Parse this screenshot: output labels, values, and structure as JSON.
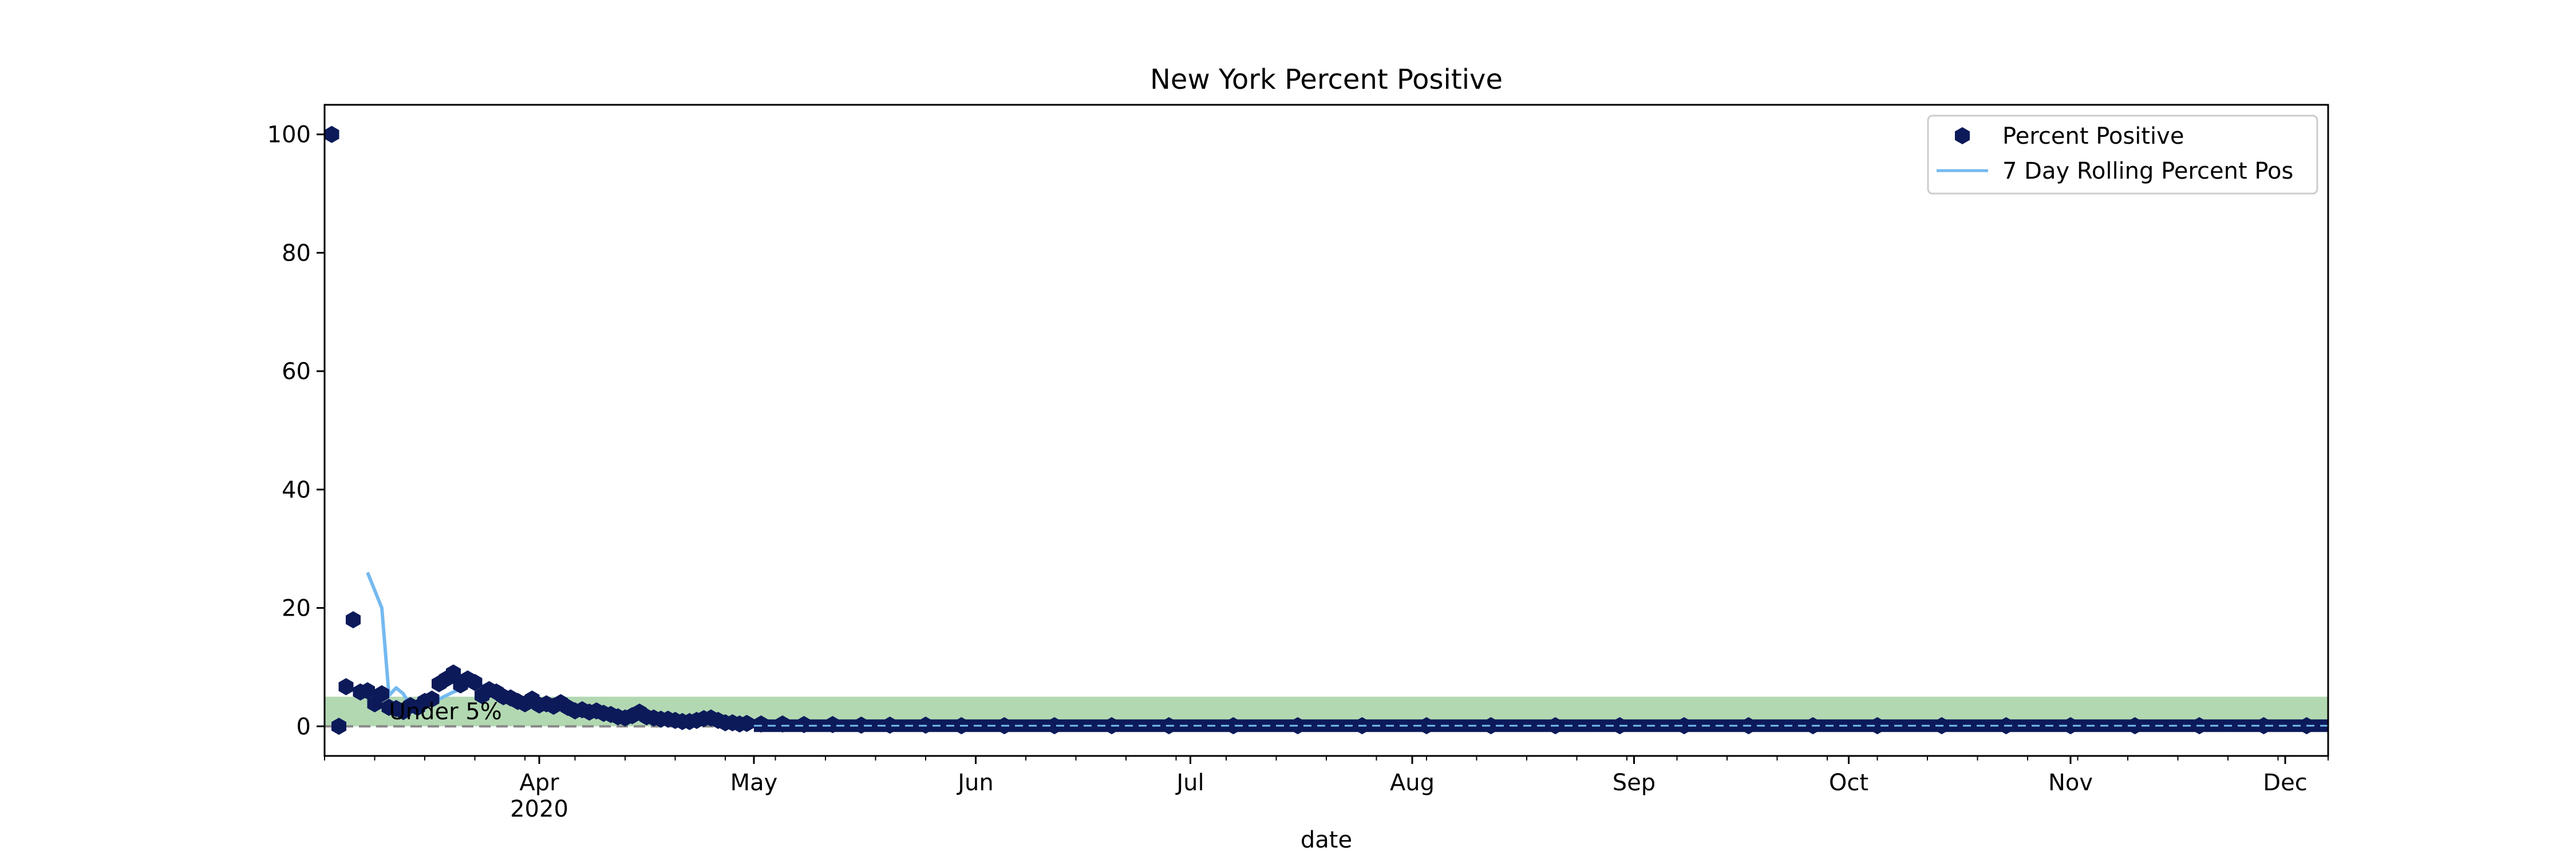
{
  "chart_data": {
    "type": "scatter",
    "title": "New York Percent Positive",
    "xlabel": "date",
    "ylabel": "",
    "xlim": [
      "2020-03-02",
      "2020-12-07"
    ],
    "ylim": [
      -5,
      105
    ],
    "y_ticks": [
      0,
      20,
      40,
      60,
      80,
      100
    ],
    "x_ticks": [
      {
        "date": "2020-04-01",
        "label": "Apr",
        "sublabel": "2020"
      },
      {
        "date": "2020-05-01",
        "label": "May",
        "sublabel": ""
      },
      {
        "date": "2020-06-01",
        "label": "Jun",
        "sublabel": ""
      },
      {
        "date": "2020-07-01",
        "label": "Jul",
        "sublabel": ""
      },
      {
        "date": "2020-08-01",
        "label": "Aug",
        "sublabel": ""
      },
      {
        "date": "2020-09-01",
        "label": "Sep",
        "sublabel": ""
      },
      {
        "date": "2020-10-01",
        "label": "Oct",
        "sublabel": ""
      },
      {
        "date": "2020-11-01",
        "label": "Nov",
        "sublabel": ""
      },
      {
        "date": "2020-12-01",
        "label": "Dec",
        "sublabel": ""
      }
    ],
    "grid": false,
    "legend_position": "top-right",
    "band": {
      "y_from": 0,
      "y_to": 5,
      "color": "#b2d8b2",
      "label": "Under 5%"
    },
    "reference_line": {
      "y": 0,
      "color": "#888888",
      "style": "dashed"
    },
    "series": [
      {
        "name": "Percent Positive",
        "kind": "scatter",
        "color": "#0c1a5a",
        "marker": "hexagon",
        "points": [
          [
            "2020-03-03",
            100
          ],
          [
            "2020-03-04",
            0
          ],
          [
            "2020-03-05",
            6.7
          ],
          [
            "2020-03-06",
            18
          ],
          [
            "2020-03-07",
            5.8
          ],
          [
            "2020-03-08",
            6.0
          ],
          [
            "2020-03-09",
            3.8
          ],
          [
            "2020-03-10",
            5.5
          ],
          [
            "2020-03-11",
            3.2
          ],
          [
            "2020-03-12",
            3.0
          ],
          [
            "2020-03-13",
            2.5
          ],
          [
            "2020-03-14",
            3.5
          ],
          [
            "2020-03-15",
            3.2
          ],
          [
            "2020-03-16",
            4.2
          ],
          [
            "2020-03-17",
            4.6
          ],
          [
            "2020-03-18",
            7.2
          ],
          [
            "2020-03-19",
            8.0
          ],
          [
            "2020-03-20",
            9.0
          ],
          [
            "2020-03-21",
            7.0
          ],
          [
            "2020-03-22",
            8.0
          ],
          [
            "2020-03-23",
            7.4
          ],
          [
            "2020-03-24",
            5.2
          ],
          [
            "2020-03-25",
            6.2
          ],
          [
            "2020-03-26",
            5.8
          ],
          [
            "2020-03-27",
            5.0
          ],
          [
            "2020-03-28",
            4.8
          ],
          [
            "2020-03-29",
            4.2
          ],
          [
            "2020-03-30",
            3.8
          ],
          [
            "2020-03-31",
            4.6
          ],
          [
            "2020-04-01",
            3.6
          ],
          [
            "2020-04-02",
            3.8
          ],
          [
            "2020-04-03",
            3.4
          ],
          [
            "2020-04-04",
            4.0
          ],
          [
            "2020-04-05",
            3.2
          ],
          [
            "2020-04-06",
            2.6
          ],
          [
            "2020-04-07",
            2.8
          ],
          [
            "2020-04-08",
            2.4
          ],
          [
            "2020-04-09",
            2.6
          ],
          [
            "2020-04-10",
            2.2
          ],
          [
            "2020-04-11",
            2.0
          ],
          [
            "2020-04-12",
            1.6
          ],
          [
            "2020-04-13",
            1.4
          ],
          [
            "2020-04-14",
            1.8
          ],
          [
            "2020-04-15",
            2.4
          ],
          [
            "2020-04-16",
            1.6
          ],
          [
            "2020-04-17",
            1.4
          ],
          [
            "2020-04-18",
            1.2
          ],
          [
            "2020-04-19",
            1.2
          ],
          [
            "2020-04-20",
            1.0
          ],
          [
            "2020-04-21",
            0.8
          ],
          [
            "2020-04-22",
            0.8
          ],
          [
            "2020-04-23",
            1.0
          ],
          [
            "2020-04-24",
            1.3
          ],
          [
            "2020-04-25",
            1.4
          ],
          [
            "2020-04-26",
            1.0
          ],
          [
            "2020-04-27",
            0.6
          ],
          [
            "2020-04-28",
            0.6
          ],
          [
            "2020-04-29",
            0.4
          ],
          [
            "2020-04-30",
            0.5
          ],
          [
            "2020-05-02",
            0.4
          ],
          [
            "2020-05-05",
            0.4
          ],
          [
            "2020-05-08",
            0.3
          ],
          [
            "2020-05-12",
            0.3
          ],
          [
            "2020-05-16",
            0.2
          ],
          [
            "2020-05-20",
            0.2
          ],
          [
            "2020-05-25",
            0.2
          ],
          [
            "2020-05-30",
            0.1
          ],
          [
            "2020-06-05",
            0.1
          ],
          [
            "2020-06-12",
            0.1
          ],
          [
            "2020-06-20",
            0.1
          ],
          [
            "2020-06-28",
            0.1
          ],
          [
            "2020-07-07",
            0.1
          ],
          [
            "2020-07-16",
            0.1
          ],
          [
            "2020-07-25",
            0.1
          ],
          [
            "2020-08-03",
            0.1
          ],
          [
            "2020-08-12",
            0.1
          ],
          [
            "2020-08-21",
            0.1
          ],
          [
            "2020-08-30",
            0.1
          ],
          [
            "2020-09-08",
            0.1
          ],
          [
            "2020-09-17",
            0.1
          ],
          [
            "2020-09-26",
            0.1
          ],
          [
            "2020-10-05",
            0.1
          ],
          [
            "2020-10-14",
            0.1
          ],
          [
            "2020-10-23",
            0.1
          ],
          [
            "2020-11-01",
            0.1
          ],
          [
            "2020-11-10",
            0.1
          ],
          [
            "2020-11-19",
            0.1
          ],
          [
            "2020-11-28",
            0.1
          ],
          [
            "2020-12-04",
            0.1
          ]
        ]
      },
      {
        "name": "7 Day Rolling Percent Pos",
        "kind": "line",
        "color": "#74b9f0",
        "points": [
          [
            "2020-03-08",
            26
          ],
          [
            "2020-03-10",
            20
          ],
          [
            "2020-03-11",
            5.2
          ],
          [
            "2020-03-12",
            6.5
          ],
          [
            "2020-03-13",
            5.5
          ],
          [
            "2020-03-14",
            3.5
          ],
          [
            "2020-03-15",
            3.2
          ],
          [
            "2020-03-16",
            3.5
          ],
          [
            "2020-03-17",
            4.0
          ],
          [
            "2020-03-18",
            4.6
          ],
          [
            "2020-03-19",
            5.2
          ],
          [
            "2020-03-20",
            5.8
          ],
          [
            "2020-03-21",
            6.2
          ],
          [
            "2020-03-22",
            6.8
          ],
          [
            "2020-03-23",
            7.0
          ],
          [
            "2020-03-24",
            6.8
          ],
          [
            "2020-03-25",
            6.4
          ],
          [
            "2020-03-26",
            6.0
          ],
          [
            "2020-03-27",
            5.6
          ],
          [
            "2020-03-28",
            5.2
          ],
          [
            "2020-03-29",
            4.8
          ],
          [
            "2020-03-30",
            4.5
          ],
          [
            "2020-04-01",
            4.0
          ],
          [
            "2020-04-03",
            3.6
          ],
          [
            "2020-04-05",
            3.2
          ],
          [
            "2020-04-08",
            2.8
          ],
          [
            "2020-04-11",
            2.4
          ],
          [
            "2020-04-14",
            2.0
          ],
          [
            "2020-04-17",
            1.7
          ],
          [
            "2020-04-20",
            1.4
          ],
          [
            "2020-04-23",
            1.2
          ],
          [
            "2020-04-26",
            1.0
          ],
          [
            "2020-04-29",
            0.8
          ],
          [
            "2020-05-03",
            0.6
          ],
          [
            "2020-05-08",
            0.4
          ],
          [
            "2020-05-15",
            0.3
          ],
          [
            "2020-05-25",
            0.2
          ],
          [
            "2020-06-10",
            0.15
          ],
          [
            "2020-07-01",
            0.1
          ],
          [
            "2020-08-01",
            0.1
          ],
          [
            "2020-09-01",
            0.1
          ],
          [
            "2020-10-01",
            0.1
          ],
          [
            "2020-11-01",
            0.1
          ],
          [
            "2020-12-05",
            0.1
          ]
        ]
      }
    ]
  }
}
